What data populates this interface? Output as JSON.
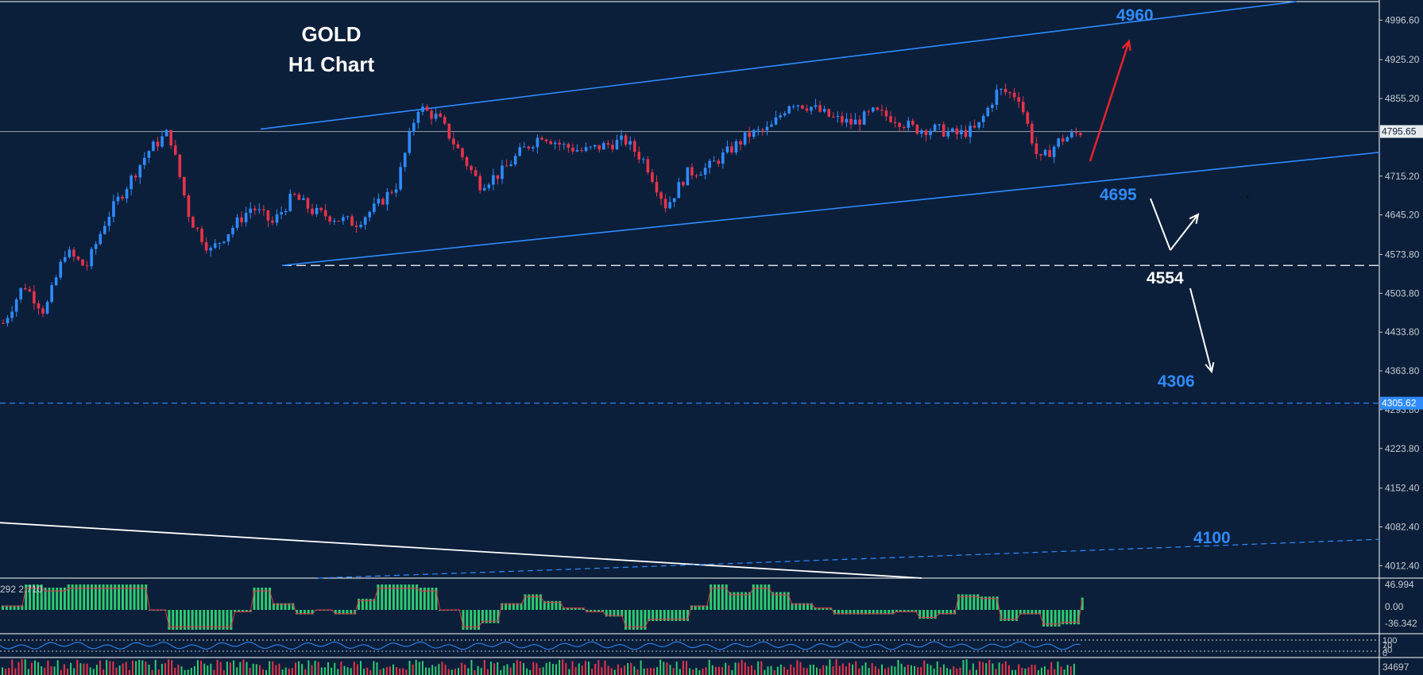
{
  "chart_data": {
    "type": "candlestick",
    "title": "GOLD",
    "subtitle": "H1 Chart",
    "instrument": "GOLD",
    "timeframe": "H1",
    "ylim": [
      3990,
      5030
    ],
    "y_ticks": [
      "4996.60",
      "4925.20",
      "4855.20",
      "4715.20",
      "4645.20",
      "4573.80",
      "4503.80",
      "4433.80",
      "4363.80",
      "4293.80",
      "4223.80",
      "4152.40",
      "4082.40",
      "4012.40"
    ],
    "current_price": "4795.65",
    "current_price_value": 4795.65,
    "support_marker": "4305.62",
    "support_marker_value": 4305.62,
    "levels": [
      {
        "label": "4960",
        "value": 4960,
        "color": "#2f8bff"
      },
      {
        "label": "4695",
        "value": 4695,
        "color": "#2f8bff"
      },
      {
        "label": "4554",
        "value": 4554,
        "color": "#ffffff"
      },
      {
        "label": "4306",
        "value": 4306,
        "color": "#2f8bff"
      },
      {
        "label": "4100",
        "value": 4100,
        "color": "#2f8bff"
      }
    ],
    "channel": {
      "upper_anchor": [
        4800,
        5030
      ],
      "lower_anchor": [
        4554,
        4758
      ]
    },
    "close_path": [
      4450,
      4520,
      4470,
      4580,
      4550,
      4640,
      4700,
      4760,
      4795,
      4640,
      4580,
      4620,
      4660,
      4630,
      4680,
      4650,
      4640,
      4630,
      4660,
      4700,
      4840,
      4820,
      4760,
      4700,
      4720,
      4760,
      4790,
      4770,
      4760,
      4770,
      4780,
      4740,
      4660,
      4720,
      4730,
      4760,
      4790,
      4800,
      4850,
      4840,
      4820,
      4810,
      4830,
      4820,
      4800,
      4800,
      4790,
      4800,
      4870,
      4860,
      4740,
      4780,
      4795
    ],
    "macd_ticks": [
      "46.994",
      "0.00",
      "-36.342"
    ],
    "macd_readout": "292 2.710",
    "rsi_ticks": [
      "100",
      "70",
      "30",
      "0"
    ],
    "volume_tick": "34697",
    "colors": {
      "background": "#0b1f3a",
      "bull": "#2f8bff",
      "bear": "#e8334a",
      "channel": "#2f8bff",
      "arrow_up": "#e8232e",
      "arrow": "#ffffff",
      "macd_hist": "#2ecc71",
      "signal": "#e8334a"
    }
  }
}
